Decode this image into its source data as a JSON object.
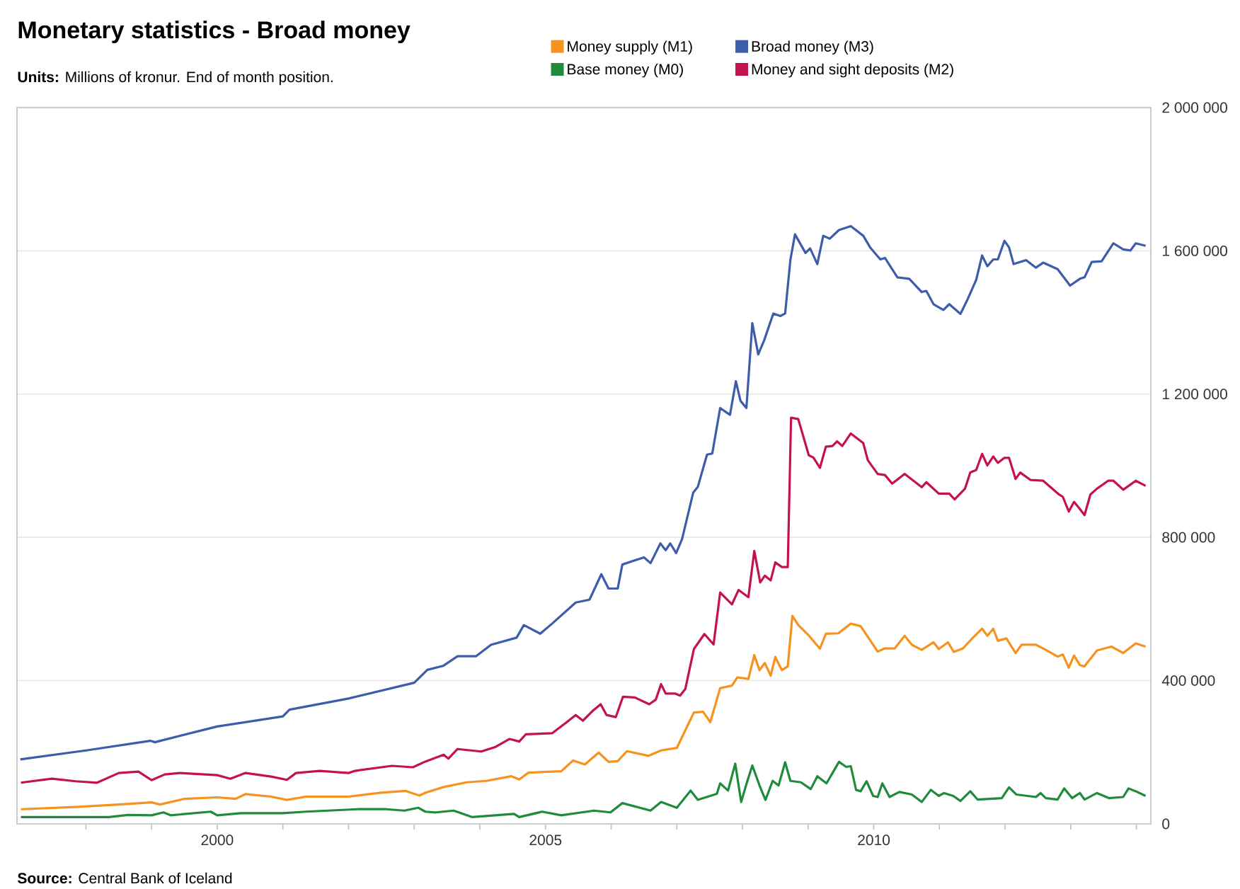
{
  "chart_data": {
    "type": "line",
    "title": "Monetary statistics - Broad money",
    "subtitle": "**Units:** Millions of kronur. End of month position.",
    "annotations": [
      "**Source:** Central Bank of Iceland"
    ],
    "xlim": [
      1996.95,
      2014.22
    ],
    "ylim": [
      0,
      2000000
    ],
    "xticks": [
      {
        "value": 1998,
        "label": null
      },
      {
        "value": 1999,
        "label": null
      },
      2000,
      {
        "value": 2001,
        "label": null
      },
      {
        "value": 2002,
        "label": null
      },
      {
        "value": 2003,
        "label": null
      },
      {
        "value": 2004,
        "label": null
      },
      2005,
      {
        "value": 2006,
        "label": null
      },
      {
        "value": 2007,
        "label": null
      },
      {
        "value": 2008,
        "label": null
      },
      {
        "value": 2009,
        "label": null
      },
      2010,
      {
        "value": 2011,
        "label": null
      },
      {
        "value": 2012,
        "label": null
      },
      {
        "value": 2013,
        "label": null
      },
      {
        "value": 2014,
        "label": null
      }
    ],
    "yticks": [
      0,
      {
        "value": 400000,
        "label": "400 000"
      },
      {
        "value": 800000,
        "label": "800 000"
      },
      {
        "value": 1200000,
        "label": "1 200 000"
      },
      {
        "value": 1600000,
        "label": "1 600 000"
      },
      {
        "value": 2000000,
        "label": "2 000 000"
      }
    ],
    "grid": "y",
    "legend": "top",
    "marker": "none",
    "line_style": "solid",
    "series": [
      {
        "name": "Money supply (M1)",
        "color": "#f7921e",
        "x": [
          1997.01,
          1997.84,
          1998.5,
          1999.0,
          1999.13,
          1999.5,
          2000.0,
          2000.28,
          2000.43,
          2000.82,
          2001.06,
          2001.35,
          2002.0,
          2002.5,
          2002.87,
          2003.08,
          2003.17,
          2003.45,
          2003.8,
          2004.1,
          2004.48,
          2004.6,
          2004.74,
          2005.24,
          2005.42,
          2005.6,
          2005.81,
          2005.96,
          2006.1,
          2006.24,
          2006.57,
          2006.76,
          2007.0,
          2007.26,
          2007.4,
          2007.51,
          2007.66,
          2007.84,
          2007.92,
          2008.09,
          2008.18,
          2008.26,
          2008.34,
          2008.43,
          2008.5,
          2008.6,
          2008.69,
          2008.76,
          2008.85,
          2009.0,
          2009.18,
          2009.27,
          2009.46,
          2009.65,
          2009.8,
          2009.95,
          2010.06,
          2010.17,
          2010.32,
          2010.47,
          2010.58,
          2010.73,
          2010.91,
          2010.99,
          2011.13,
          2011.22,
          2011.36,
          2011.5,
          2011.65,
          2011.73,
          2011.82,
          2011.89,
          2012.02,
          2012.16,
          2012.25,
          2012.47,
          2012.62,
          2012.8,
          2012.88,
          2012.97,
          2013.05,
          2013.14,
          2013.21,
          2013.4,
          2013.62,
          2013.8,
          2013.99,
          2014.14
        ],
        "values": [
          41000,
          47000,
          54000,
          60000,
          54000,
          70000,
          74000,
          70000,
          83000,
          76000,
          67000,
          76000,
          76000,
          87000,
          92000,
          79000,
          87000,
          103000,
          116000,
          120000,
          133000,
          124000,
          143000,
          147000,
          177000,
          166000,
          199000,
          173000,
          175000,
          203000,
          190000,
          205000,
          212000,
          311000,
          313000,
          284000,
          379000,
          386000,
          409000,
          405000,
          471000,
          429000,
          449000,
          414000,
          466000,
          429000,
          440000,
          581000,
          555000,
          528000,
          489000,
          531000,
          532000,
          559000,
          552000,
          511000,
          481000,
          490000,
          490000,
          525000,
          500000,
          486000,
          507000,
          488000,
          507000,
          480000,
          490000,
          518000,
          545000,
          525000,
          545000,
          511000,
          518000,
          477000,
          500000,
          500000,
          486000,
          467000,
          473000,
          436000,
          470000,
          443000,
          440000,
          484000,
          495000,
          477000,
          504000,
          495000
        ]
      },
      {
        "name": "Broad money (M3)",
        "color": "#3d5caa",
        "x": [
          1997.0,
          1998.0,
          1998.98,
          1999.05,
          2000.0,
          2001.0,
          2001.1,
          2002.0,
          2003.0,
          2003.2,
          2003.44,
          2003.66,
          2003.94,
          2004.17,
          2004.56,
          2004.67,
          2004.92,
          2005.1,
          2005.46,
          2005.67,
          2005.85,
          2005.96,
          2006.1,
          2006.17,
          2006.3,
          2006.5,
          2006.6,
          2006.75,
          2006.83,
          2006.9,
          2006.99,
          2007.08,
          2007.25,
          2007.32,
          2007.46,
          2007.54,
          2007.66,
          2007.81,
          2007.9,
          2007.97,
          2008.06,
          2008.15,
          2008.24,
          2008.33,
          2008.47,
          2008.58,
          2008.65,
          2008.73,
          2008.8,
          2008.96,
          2009.03,
          2009.14,
          2009.23,
          2009.33,
          2009.47,
          2009.65,
          2009.84,
          2009.95,
          2010.1,
          2010.17,
          2010.36,
          2010.54,
          2010.73,
          2010.8,
          2010.91,
          2011.06,
          2011.15,
          2011.32,
          2011.43,
          2011.56,
          2011.65,
          2011.73,
          2011.82,
          2011.89,
          2011.99,
          2012.06,
          2012.13,
          2012.32,
          2012.47,
          2012.58,
          2012.8,
          2012.99,
          2013.14,
          2013.21,
          2013.32,
          2013.47,
          2013.65,
          2013.8,
          2013.91,
          2013.99,
          2014.14
        ],
        "values": [
          180000,
          205000,
          232000,
          228000,
          272000,
          300000,
          319000,
          350000,
          394000,
          430000,
          441000,
          468000,
          468000,
          500000,
          520000,
          555000,
          531000,
          559000,
          618000,
          626000,
          697000,
          657000,
          657000,
          724000,
          732000,
          744000,
          728000,
          783000,
          764000,
          783000,
          756000,
          795000,
          925000,
          941000,
          1031000,
          1034000,
          1161000,
          1142000,
          1236000,
          1181000,
          1161000,
          1398000,
          1311000,
          1350000,
          1425000,
          1418000,
          1425000,
          1575000,
          1646000,
          1594000,
          1607000,
          1563000,
          1642000,
          1634000,
          1658000,
          1669000,
          1642000,
          1608000,
          1576000,
          1580000,
          1526000,
          1522000,
          1485000,
          1488000,
          1451000,
          1435000,
          1451000,
          1424000,
          1465000,
          1519000,
          1587000,
          1557000,
          1576000,
          1576000,
          1628000,
          1610000,
          1563000,
          1574000,
          1553000,
          1567000,
          1549000,
          1503000,
          1522000,
          1526000,
          1569000,
          1571000,
          1621000,
          1604000,
          1601000,
          1621000,
          1614000
        ]
      },
      {
        "name": "Base money (M0)",
        "color": "#1f8b3b",
        "x": [
          1997.01,
          1997.84,
          1998.35,
          1998.64,
          1999.0,
          1999.18,
          1999.29,
          1999.9,
          2000.0,
          2000.36,
          2001.0,
          2001.35,
          2002.14,
          2002.57,
          2002.85,
          2003.06,
          2003.17,
          2003.33,
          2003.6,
          2003.88,
          2004.52,
          2004.6,
          2004.95,
          2005.24,
          2005.74,
          2005.99,
          2006.17,
          2006.6,
          2006.76,
          2007.0,
          2007.21,
          2007.32,
          2007.61,
          2007.66,
          2007.78,
          2007.89,
          2007.98,
          2008.06,
          2008.15,
          2008.26,
          2008.35,
          2008.46,
          2008.55,
          2008.65,
          2008.73,
          2008.89,
          2009.04,
          2009.14,
          2009.28,
          2009.47,
          2009.58,
          2009.65,
          2009.73,
          2009.8,
          2009.89,
          2009.99,
          2010.06,
          2010.13,
          2010.24,
          2010.39,
          2010.58,
          2010.73,
          2010.87,
          2010.99,
          2011.07,
          2011.21,
          2011.32,
          2011.47,
          2011.58,
          2011.95,
          2012.06,
          2012.17,
          2012.47,
          2012.54,
          2012.62,
          2012.8,
          2012.9,
          2013.02,
          2013.14,
          2013.21,
          2013.4,
          2013.58,
          2013.8,
          2013.88,
          2013.99,
          2014.14
        ],
        "values": [
          19000,
          19000,
          19000,
          25000,
          24000,
          32000,
          24000,
          34000,
          24000,
          30000,
          30000,
          34000,
          41000,
          41000,
          37000,
          45000,
          34000,
          32000,
          37000,
          19000,
          28000,
          19000,
          34000,
          24000,
          37000,
          32000,
          58000,
          37000,
          61000,
          45000,
          93000,
          67000,
          84000,
          113000,
          93000,
          168000,
          61000,
          111000,
          163000,
          107000,
          67000,
          120000,
          107000,
          172000,
          120000,
          116000,
          97000,
          133000,
          113000,
          173000,
          159000,
          161000,
          95000,
          91000,
          119000,
          78000,
          75000,
          113000,
          75000,
          89000,
          82000,
          61000,
          95000,
          78000,
          86000,
          78000,
          64000,
          91000,
          68000,
          72000,
          102000,
          82000,
          75000,
          86000,
          72000,
          68000,
          99000,
          72000,
          86000,
          68000,
          86000,
          72000,
          75000,
          99000,
          91000,
          78000
        ]
      },
      {
        "name": "Money and sight deposits (M2)",
        "color": "#c5124f",
        "x": [
          1997.01,
          1997.48,
          1997.84,
          1998.17,
          1998.5,
          1998.8,
          1999.0,
          1999.2,
          1999.43,
          2000.0,
          2000.2,
          2000.43,
          2000.82,
          2001.06,
          2001.2,
          2001.56,
          2002.0,
          2002.1,
          2002.66,
          2002.98,
          2003.17,
          2003.45,
          2003.52,
          2003.66,
          2004.02,
          2004.24,
          2004.45,
          2004.6,
          2004.7,
          2005.1,
          2005.31,
          2005.46,
          2005.57,
          2005.71,
          2005.84,
          2005.93,
          2006.07,
          2006.18,
          2006.36,
          2006.58,
          2006.68,
          2006.76,
          2006.83,
          2006.97,
          2007.05,
          2007.13,
          2007.26,
          2007.42,
          2007.56,
          2007.66,
          2007.84,
          2007.94,
          2008.09,
          2008.18,
          2008.27,
          2008.34,
          2008.43,
          2008.5,
          2008.6,
          2008.69,
          2008.74,
          2008.85,
          2009.01,
          2009.08,
          2009.18,
          2009.27,
          2009.37,
          2009.44,
          2009.52,
          2009.65,
          2009.84,
          2009.91,
          2010.06,
          2010.17,
          2010.28,
          2010.47,
          2010.73,
          2010.8,
          2010.99,
          2011.15,
          2011.23,
          2011.39,
          2011.47,
          2011.56,
          2011.65,
          2011.73,
          2011.82,
          2011.89,
          2011.99,
          2012.06,
          2012.16,
          2012.23,
          2012.39,
          2012.58,
          2012.82,
          2012.88,
          2012.97,
          2013.05,
          2013.14,
          2013.21,
          2013.3,
          2013.4,
          2013.57,
          2013.65,
          2013.8,
          2013.99,
          2014.14
        ],
        "values": [
          115000,
          126000,
          119000,
          115000,
          142000,
          146000,
          122000,
          138000,
          142000,
          136000,
          126000,
          142000,
          132000,
          123000,
          142000,
          148000,
          142000,
          148000,
          162000,
          158000,
          174000,
          193000,
          182000,
          209000,
          202000,
          215000,
          237000,
          230000,
          250000,
          253000,
          282000,
          304000,
          288000,
          314000,
          334000,
          304000,
          298000,
          355000,
          353000,
          334000,
          347000,
          390000,
          364000,
          364000,
          358000,
          377000,
          488000,
          530000,
          501000,
          646000,
          613000,
          653000,
          633000,
          762000,
          674000,
          693000,
          680000,
          730000,
          717000,
          717000,
          1134000,
          1130000,
          1029000,
          1023000,
          994000,
          1053000,
          1055000,
          1068000,
          1055000,
          1090000,
          1063000,
          1015000,
          977000,
          974000,
          950000,
          977000,
          940000,
          954000,
          922000,
          922000,
          906000,
          936000,
          981000,
          988000,
          1033000,
          1001000,
          1026000,
          1008000,
          1022000,
          1022000,
          963000,
          981000,
          960000,
          958000,
          920000,
          913000,
          872000,
          899000,
          879000,
          862000,
          920000,
          936000,
          958000,
          958000,
          933000,
          958000,
          944000
        ]
      }
    ]
  }
}
